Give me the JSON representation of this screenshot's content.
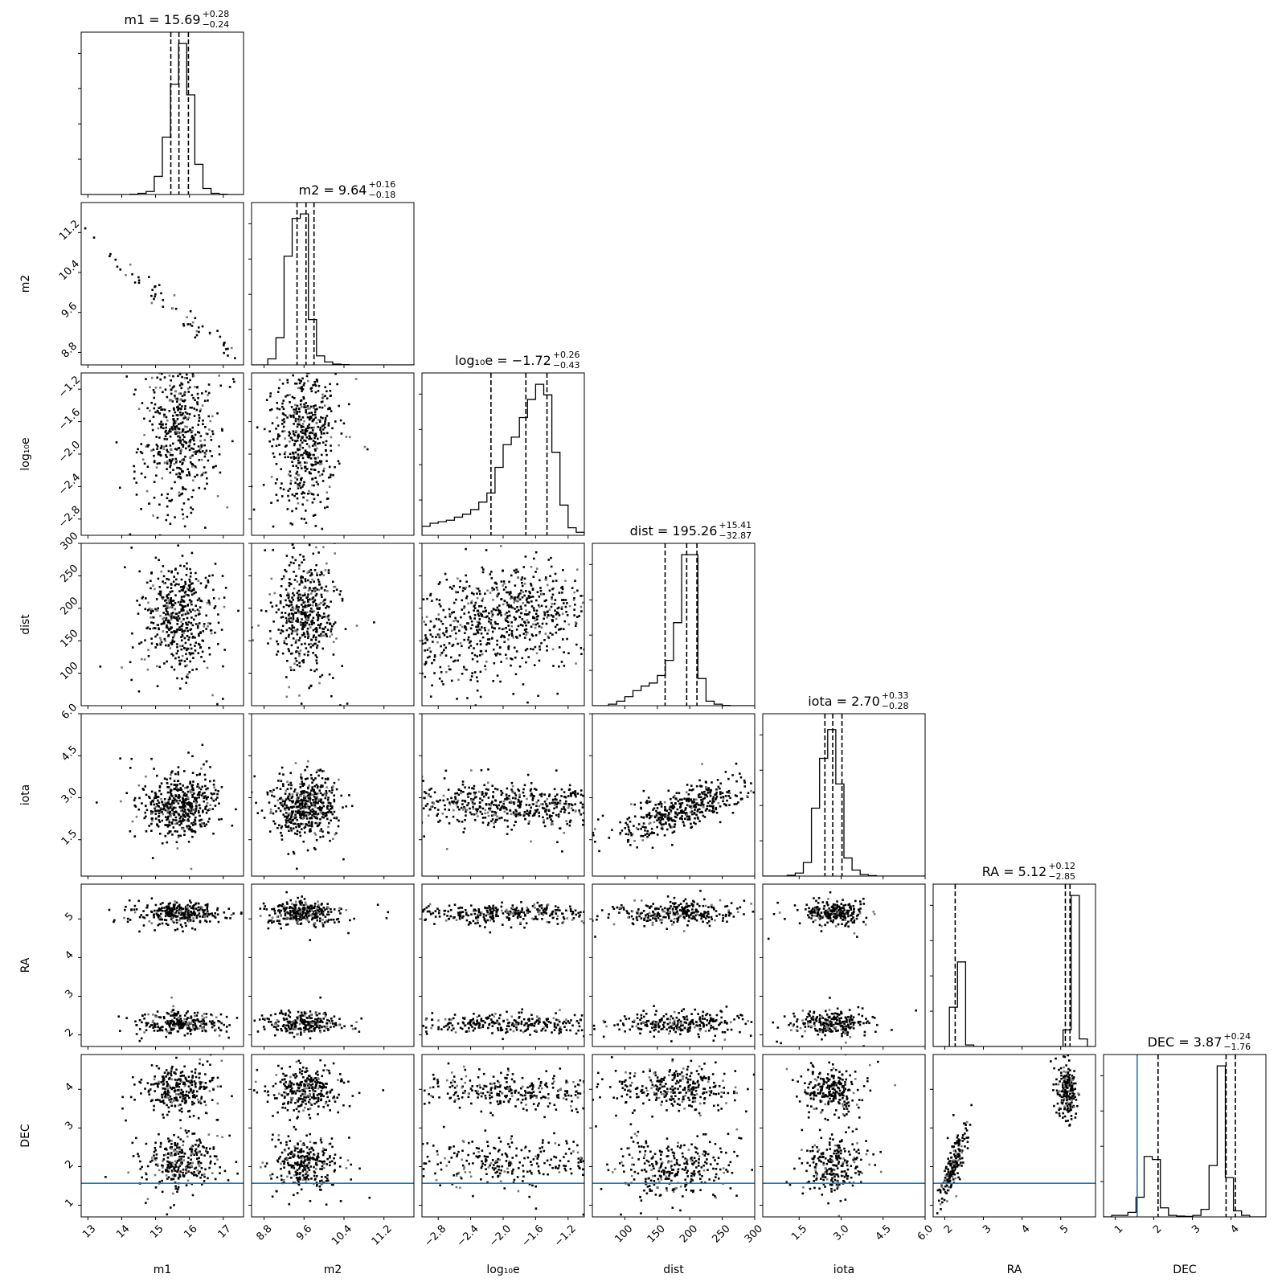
{
  "chart_data": {
    "type": "corner",
    "params": [
      {
        "name": "m1",
        "label": "m1",
        "title": "m1 = 15.69",
        "median": 15.69,
        "err_plus": "+0.28",
        "err_minus": "−0.24",
        "range": [
          12.8,
          17.6
        ],
        "ticks": [
          13,
          14,
          15,
          16,
          17
        ],
        "tick_labels": [
          "13",
          "14",
          "15",
          "16",
          "17"
        ],
        "quantiles": [
          15.45,
          15.69,
          15.97
        ],
        "hist_bins": [
          0,
          0,
          0,
          0,
          0,
          0,
          0.002,
          0.008,
          0.02,
          0.12,
          0.38,
          0.73,
          1.0,
          0.66,
          0.2,
          0.04,
          0.008,
          0.002,
          0,
          0
        ]
      },
      {
        "name": "m2",
        "label": "m2",
        "title": "m2 = 9.64",
        "median": 9.64,
        "err_plus": "+0.16",
        "err_minus": "−0.18",
        "range": [
          8.55,
          11.8
        ],
        "ticks": [
          8.8,
          9.6,
          10.4,
          11.2
        ],
        "tick_labels": [
          "8.8",
          "9.6",
          "10.4",
          "11.2"
        ],
        "quantiles": [
          9.46,
          9.64,
          9.8
        ],
        "hist_bins": [
          0,
          0,
          0.04,
          0.18,
          0.72,
          0.97,
          1.0,
          0.3,
          0.06,
          0.02,
          0.005,
          0.002,
          0,
          0,
          0,
          0,
          0,
          0,
          0,
          0
        ]
      },
      {
        "name": "log10e",
        "label": "log₁₀e",
        "title": "log₁₀e = −1.72",
        "median": -1.72,
        "err_plus": "+0.26",
        "err_minus": "−0.43",
        "range": [
          -3.0,
          -1.0
        ],
        "ticks": [
          -2.8,
          -2.4,
          -2.0,
          -1.6,
          -1.2
        ],
        "tick_labels": [
          "−2.8",
          "−2.4",
          "−2.0",
          "−1.6",
          "−1.2"
        ],
        "quantiles": [
          -2.15,
          -1.72,
          -1.46
        ],
        "hist_bins": [
          0.06,
          0.08,
          0.09,
          0.1,
          0.12,
          0.14,
          0.17,
          0.22,
          0.28,
          0.45,
          0.6,
          0.65,
          0.78,
          0.9,
          1.0,
          0.93,
          0.55,
          0.2,
          0.05,
          0.02
        ]
      },
      {
        "name": "dist",
        "label": "dist",
        "title": "dist = 195.26",
        "median": 195.26,
        "err_plus": "+15.41",
        "err_minus": "−32.87",
        "range": [
          50,
          300
        ],
        "ticks": [
          100,
          150,
          200,
          250,
          300
        ],
        "tick_labels": [
          "100",
          "150",
          "200",
          "250",
          "300"
        ],
        "quantiles": [
          162,
          195.26,
          211
        ],
        "hist_bins": [
          0,
          0,
          0.01,
          0.03,
          0.06,
          0.1,
          0.13,
          0.15,
          0.2,
          0.3,
          0.55,
          1.0,
          1.0,
          0.18,
          0.03,
          0.01,
          0.002,
          0,
          0,
          0
        ]
      },
      {
        "name": "iota",
        "label": "iota",
        "title": "iota = 2.70",
        "median": 2.7,
        "err_plus": "+0.33",
        "err_minus": "−0.28",
        "range": [
          0.2,
          6.0
        ],
        "ticks": [
          1.5,
          3.0,
          4.5,
          6.0
        ],
        "tick_labels": [
          "1.5",
          "3.0",
          "4.5",
          "6.0"
        ],
        "quantiles": [
          2.42,
          2.7,
          3.03
        ],
        "hist_bins": [
          0,
          0,
          0,
          0.005,
          0.02,
          0.09,
          0.45,
          0.78,
          0.97,
          0.61,
          0.12,
          0.04,
          0.01,
          0.003,
          0,
          0,
          0,
          0,
          0,
          0
        ]
      },
      {
        "name": "RA",
        "label": "RA",
        "title": "RA = 5.12",
        "median": 5.12,
        "err_plus": "+0.12",
        "err_minus": "−2.85",
        "range": [
          1.7,
          5.9
        ],
        "ticks": [
          2,
          3,
          4,
          5
        ],
        "tick_labels": [
          "2",
          "3",
          "4",
          "5"
        ],
        "quantiles": [
          2.27,
          5.12,
          5.24
        ],
        "hist_bins": [
          0,
          0,
          0.26,
          0.56,
          0.01,
          0,
          0,
          0,
          0,
          0,
          0,
          0,
          0,
          0,
          0,
          0,
          0.11,
          1.0,
          0.05,
          0
        ]
      },
      {
        "name": "DEC",
        "label": "DEC",
        "title": "DEC = 3.87",
        "median": 3.87,
        "err_plus": "+0.24",
        "err_minus": "−1.76",
        "range": [
          0.7,
          4.9
        ],
        "ticks": [
          1,
          2,
          3,
          4
        ],
        "tick_labels": [
          "1",
          "2",
          "3",
          "4"
        ],
        "quantiles": [
          2.11,
          3.87,
          4.11
        ],
        "hist_bins": [
          0,
          0.01,
          0.01,
          0.03,
          0.13,
          0.4,
          0.38,
          0.06,
          0.01,
          0.005,
          0.003,
          0.01,
          0.05,
          0.34,
          1.0,
          0.26,
          0.04,
          0.01,
          0,
          0
        ]
      }
    ],
    "truths": {
      "DEC": 1.57
    },
    "truth_color": "#1f77b4",
    "scatter_groups": {
      "m1|m2": [
        {
          "x": 15.7,
          "y": 9.62,
          "sx": 0.9,
          "sy": 0.5,
          "rho": -0.97,
          "n": 60
        }
      ],
      "m1|log10e": [
        {
          "x": 15.7,
          "y": -1.75,
          "sx": 0.45,
          "sy": 0.4,
          "rho": 0.0,
          "n": 550
        }
      ],
      "m2|log10e": [
        {
          "x": 9.62,
          "y": -1.75,
          "sx": 0.26,
          "sy": 0.4,
          "rho": 0.0,
          "n": 550
        }
      ],
      "m1|dist": [
        {
          "x": 15.7,
          "y": 190,
          "sx": 0.45,
          "sy": 35,
          "rho": 0.0,
          "n": 500
        }
      ],
      "m2|dist": [
        {
          "x": 9.62,
          "y": 190,
          "sx": 0.26,
          "sy": 35,
          "rho": 0.0,
          "n": 500
        }
      ],
      "log10e|dist": [
        {
          "x": -1.6,
          "y": 195,
          "sx": 0.4,
          "sy": 28,
          "rho": 0.0,
          "n": 450
        },
        {
          "x": -2.5,
          "y": 165,
          "sx": 0.35,
          "sy": 40,
          "rho": 0.2,
          "n": 350
        }
      ],
      "m1|iota": [
        {
          "x": 15.7,
          "y": 2.7,
          "sx": 0.45,
          "sy": 0.45,
          "rho": 0.0,
          "n": 500
        }
      ],
      "m2|iota": [
        {
          "x": 9.62,
          "y": 2.7,
          "sx": 0.26,
          "sy": 0.45,
          "rho": 0.0,
          "n": 500
        }
      ],
      "log10e|iota": [
        {
          "x": -1.9,
          "y": 2.75,
          "sx": 0.55,
          "sy": 0.32,
          "rho": 0.0,
          "n": 550
        }
      ],
      "dist|iota": [
        {
          "x": 190,
          "y": 2.6,
          "sx": 40,
          "sy": 0.4,
          "rho": 0.75,
          "n": 450
        }
      ],
      "m1|RA": [
        {
          "x": 15.7,
          "y": 5.15,
          "sx": 0.5,
          "sy": 0.12,
          "rho": 0.0,
          "n": 300
        },
        {
          "x": 15.7,
          "y": 2.3,
          "sx": 0.5,
          "sy": 0.12,
          "rho": 0.0,
          "n": 250
        }
      ],
      "m2|RA": [
        {
          "x": 9.62,
          "y": 5.15,
          "sx": 0.3,
          "sy": 0.12,
          "rho": 0.0,
          "n": 300
        },
        {
          "x": 9.62,
          "y": 2.3,
          "sx": 0.3,
          "sy": 0.12,
          "rho": 0.0,
          "n": 250
        }
      ],
      "log10e|RA": [
        {
          "x": -1.9,
          "y": 5.15,
          "sx": 0.55,
          "sy": 0.1,
          "rho": 0.0,
          "n": 350
        },
        {
          "x": -1.9,
          "y": 2.3,
          "sx": 0.55,
          "sy": 0.1,
          "rho": 0.0,
          "n": 300
        }
      ],
      "dist|RA": [
        {
          "x": 180,
          "y": 5.15,
          "sx": 40,
          "sy": 0.12,
          "rho": 0.0,
          "n": 300
        },
        {
          "x": 180,
          "y": 2.3,
          "sx": 40,
          "sy": 0.12,
          "rho": 0.0,
          "n": 250
        }
      ],
      "iota|RA": [
        {
          "x": 2.7,
          "y": 5.15,
          "sx": 0.45,
          "sy": 0.12,
          "rho": 0.0,
          "n": 250
        },
        {
          "x": 2.7,
          "y": 2.3,
          "sx": 0.55,
          "sy": 0.12,
          "rho": 0.0,
          "n": 250
        }
      ],
      "m1|DEC": [
        {
          "x": 15.7,
          "y": 4.0,
          "sx": 0.45,
          "sy": 0.25,
          "rho": 0.0,
          "n": 300
        },
        {
          "x": 15.7,
          "y": 2.1,
          "sx": 0.45,
          "sy": 0.3,
          "rho": 0.0,
          "n": 300
        }
      ],
      "m2|DEC": [
        {
          "x": 9.62,
          "y": 4.0,
          "sx": 0.27,
          "sy": 0.25,
          "rho": 0.0,
          "n": 300
        },
        {
          "x": 9.62,
          "y": 2.1,
          "sx": 0.27,
          "sy": 0.3,
          "rho": 0.0,
          "n": 300
        }
      ],
      "log10e|DEC": [
        {
          "x": -1.9,
          "y": 4.0,
          "sx": 0.55,
          "sy": 0.2,
          "rho": 0.0,
          "n": 300
        },
        {
          "x": -1.9,
          "y": 2.1,
          "sx": 0.55,
          "sy": 0.25,
          "rho": 0.0,
          "n": 300
        }
      ],
      "dist|DEC": [
        {
          "x": 180,
          "y": 4.0,
          "sx": 40,
          "sy": 0.22,
          "rho": 0.0,
          "n": 300
        },
        {
          "x": 180,
          "y": 2.0,
          "sx": 40,
          "sy": 0.3,
          "rho": 0.0,
          "n": 300
        }
      ],
      "iota|DEC": [
        {
          "x": 2.7,
          "y": 4.0,
          "sx": 0.4,
          "sy": 0.25,
          "rho": 0.0,
          "n": 250
        },
        {
          "x": 2.7,
          "y": 2.0,
          "sx": 0.45,
          "sy": 0.3,
          "rho": 0.0,
          "n": 250
        }
      ],
      "RA|DEC": [
        {
          "x": 5.15,
          "y": 4.0,
          "sx": 0.1,
          "sy": 0.3,
          "rho": 0.0,
          "n": 200
        },
        {
          "x": 2.2,
          "y": 1.95,
          "sx": 0.15,
          "sy": 0.4,
          "rho": 0.85,
          "n": 200
        }
      ]
    }
  }
}
